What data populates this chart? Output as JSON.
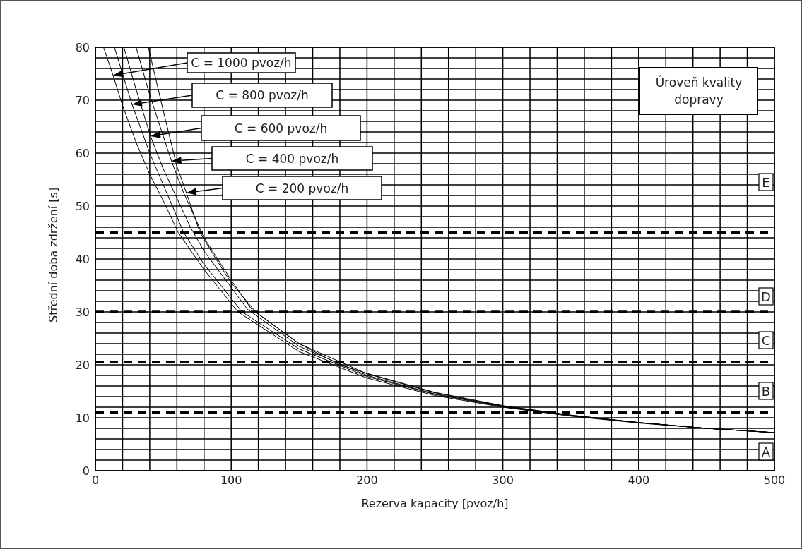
{
  "chart_data": {
    "type": "line",
    "xlabel": "Rezerva kapacity [pvoz/h]",
    "ylabel": "Střední doba zdržení [s]",
    "xlim": [
      0,
      500
    ],
    "ylim": [
      0,
      80
    ],
    "xticks": [
      0,
      {
        "value": 20,
        "label": null
      },
      {
        "value": 40,
        "label": null
      },
      {
        "value": 60,
        "label": null
      },
      {
        "value": 80,
        "label": null
      },
      100,
      {
        "value": 120,
        "label": null
      },
      {
        "value": 140,
        "label": null
      },
      {
        "value": 160,
        "label": null
      },
      {
        "value": 180,
        "label": null
      },
      200,
      {
        "value": 220,
        "label": null
      },
      {
        "value": 240,
        "label": null
      },
      {
        "value": 260,
        "label": null
      },
      {
        "value": 280,
        "label": null
      },
      300,
      {
        "value": 320,
        "label": null
      },
      {
        "value": 340,
        "label": null
      },
      {
        "value": 360,
        "label": null
      },
      {
        "value": 380,
        "label": null
      },
      400,
      {
        "value": 420,
        "label": null
      },
      {
        "value": 440,
        "label": null
      },
      {
        "value": 460,
        "label": null
      },
      {
        "value": 480,
        "label": null
      },
      500
    ],
    "yticks": [
      0,
      {
        "value": 2,
        "label": null
      },
      {
        "value": 4,
        "label": null
      },
      {
        "value": 6,
        "label": null
      },
      {
        "value": 8,
        "label": null
      },
      10,
      {
        "value": 12,
        "label": null
      },
      {
        "value": 14,
        "label": null
      },
      {
        "value": 16,
        "label": null
      },
      {
        "value": 18,
        "label": null
      },
      20,
      {
        "value": 22,
        "label": null
      },
      {
        "value": 24,
        "label": null
      },
      {
        "value": 26,
        "label": null
      },
      {
        "value": 28,
        "label": null
      },
      30,
      {
        "value": 32,
        "label": null
      },
      {
        "value": 34,
        "label": null
      },
      {
        "value": 36,
        "label": null
      },
      {
        "value": 38,
        "label": null
      },
      40,
      {
        "value": 42,
        "label": null
      },
      {
        "value": 44,
        "label": null
      },
      {
        "value": 46,
        "label": null
      },
      {
        "value": 48,
        "label": null
      },
      50,
      {
        "value": 52,
        "label": null
      },
      {
        "value": 54,
        "label": null
      },
      {
        "value": 56,
        "label": null
      },
      {
        "value": 58,
        "label": null
      },
      60,
      {
        "value": 62,
        "label": null
      },
      {
        "value": 64,
        "label": null
      },
      {
        "value": 66,
        "label": null
      },
      {
        "value": 68,
        "label": null
      },
      70,
      {
        "value": 72,
        "label": null
      },
      {
        "value": 74,
        "label": null
      },
      {
        "value": 76,
        "label": null
      },
      {
        "value": 78,
        "label": null
      },
      80
    ],
    "grid": true,
    "legend": "top left",
    "marker": "none",
    "line_style": "solid",
    "series": [
      {
        "name": "C = 1000 pvoz/h",
        "color": "#000000",
        "x": [
          6,
          13,
          20,
          30,
          40,
          50,
          61,
          80,
          105,
          150,
          200,
          250,
          300,
          350,
          400,
          450,
          500
        ],
        "values": [
          80,
          74.7,
          69,
          62,
          56,
          51,
          45,
          38,
          30,
          22.5,
          17.5,
          14.2,
          12,
          10.3,
          9,
          8,
          7.2
        ]
      },
      {
        "name": "C = 800 pvoz/h",
        "color": "#000000",
        "x": [
          14,
          20,
          27,
          40,
          50,
          65,
          80,
          108,
          150,
          200,
          250,
          300,
          350,
          400,
          450,
          500
        ],
        "values": [
          80,
          75,
          69.2,
          60,
          54,
          45,
          39,
          30,
          23,
          17.8,
          14.4,
          12.1,
          10.4,
          9.1,
          8,
          7.2
        ]
      },
      {
        "name": "C = 600 pvoz/h",
        "color": "#000000",
        "x": [
          21,
          30,
          40.6,
          50,
          60,
          70,
          80,
          112,
          150,
          200,
          250,
          300,
          350,
          400,
          450,
          500
        ],
        "values": [
          80,
          72,
          63.2,
          57,
          51.5,
          46,
          41.5,
          30.5,
          23.5,
          18,
          14.5,
          12.2,
          10.4,
          9.1,
          8,
          7.2
        ]
      },
      {
        "name": "C = 400 pvoz/h",
        "color": "#000000",
        "x": [
          30,
          40,
          56,
          65,
          73,
          80,
          100,
          115,
          150,
          200,
          250,
          300,
          350,
          400,
          450,
          500
        ],
        "values": [
          80,
          71,
          58.5,
          52.5,
          48,
          44,
          36,
          30.5,
          24,
          18.3,
          14.7,
          12.2,
          10.5,
          9.1,
          8,
          7.2
        ]
      },
      {
        "name": "C = 200 pvoz/h",
        "color": "#000000",
        "x": [
          39,
          50,
          60,
          67,
          77,
          90,
          100,
          118,
          150,
          180,
          200,
          250,
          300,
          350,
          400,
          450,
          500
        ],
        "values": [
          80,
          68,
          57.5,
          52.5,
          45,
          39.5,
          35.5,
          30,
          24,
          20,
          18.4,
          14.8,
          12.3,
          10.5,
          9.1,
          8,
          7.2
        ]
      }
    ],
    "ref_lines": [
      {
        "axis": "y",
        "value": 11,
        "line_style": "dashed",
        "color": "#000000"
      },
      {
        "axis": "y",
        "value": 20.5,
        "line_style": "dashed",
        "color": "#000000"
      },
      {
        "axis": "y",
        "value": 30,
        "line_style": "dashed",
        "color": "#000000"
      },
      {
        "axis": "y",
        "value": 45,
        "line_style": "dashed",
        "color": "#000000"
      }
    ],
    "annotations": [
      "Úroveň kvality dopravy",
      "A",
      "B",
      "C",
      "D",
      "E"
    ]
  }
}
